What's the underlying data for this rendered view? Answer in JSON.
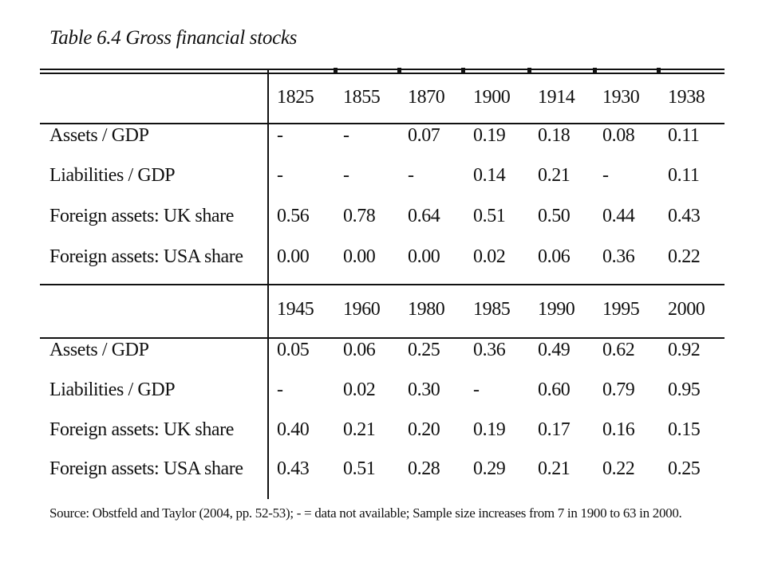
{
  "caption": "Table 6.4  Gross financial stocks",
  "blocks": [
    {
      "years": [
        "1825",
        "1855",
        "1870",
        "1900",
        "1914",
        "1930",
        "1938"
      ],
      "rows": [
        {
          "label": "Assets / GDP",
          "values": [
            "-",
            "-",
            "0.07",
            "0.19",
            "0.18",
            "0.08",
            "0.11"
          ]
        },
        {
          "label": "Liabilities / GDP",
          "values": [
            "-",
            "-",
            "-",
            "0.14",
            "0.21",
            "-",
            "0.11"
          ]
        },
        {
          "label": "Foreign assets: UK share",
          "values": [
            "0.56",
            "0.78",
            "0.64",
            "0.51",
            "0.50",
            "0.44",
            "0.43"
          ]
        },
        {
          "label": "Foreign assets: USA share",
          "values": [
            "0.00",
            "0.00",
            "0.00",
            "0.02",
            "0.06",
            "0.36",
            "0.22"
          ]
        }
      ]
    },
    {
      "years": [
        "1945",
        "1960",
        "1980",
        "1985",
        "1990",
        "1995",
        "2000"
      ],
      "rows": [
        {
          "label": "Assets / GDP",
          "values": [
            "0.05",
            "0.06",
            "0.25",
            "0.36",
            "0.49",
            "0.62",
            "0.92"
          ]
        },
        {
          "label": "Liabilities / GDP",
          "values": [
            "-",
            "0.02",
            "0.30",
            "-",
            "0.60",
            "0.79",
            "0.95"
          ]
        },
        {
          "label": "Foreign assets: UK share",
          "values": [
            "0.40",
            "0.21",
            "0.20",
            "0.19",
            "0.17",
            "0.16",
            "0.15"
          ]
        },
        {
          "label": "Foreign assets: USA share",
          "values": [
            "0.43",
            "0.51",
            "0.28",
            "0.29",
            "0.21",
            "0.22",
            "0.25"
          ]
        }
      ]
    }
  ],
  "source": "Source: Obstfeld and Taylor (2004, pp. 52-53); - = data not available; Sample size increases from 7 in 1900 to 63 in 2000."
}
